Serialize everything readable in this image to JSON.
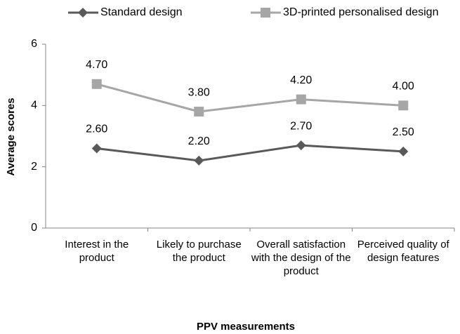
{
  "chart_data": {
    "type": "line",
    "categories": [
      "Interest in the product",
      "Likely to purchase the product",
      "Overall satisfaction with the design of the product",
      "Perceived quality of design features"
    ],
    "series": [
      {
        "name": "Standard design",
        "color": "#595959",
        "marker": "diamond",
        "values": [
          2.6,
          2.2,
          2.7,
          2.5
        ],
        "value_labels": [
          "2.60",
          "2.20",
          "2.70",
          "2.50"
        ]
      },
      {
        "name": "3D-printed personalised design",
        "color": "#a6a6a6",
        "marker": "square",
        "values": [
          4.7,
          3.8,
          4.2,
          4.0
        ],
        "value_labels": [
          "4.70",
          "3.80",
          "4.20",
          "4.00"
        ]
      }
    ],
    "xlabel": "PPV measurements",
    "ylabel": "Average scores",
    "ylim": [
      0,
      6
    ],
    "yticks": [
      0,
      2,
      4,
      6
    ],
    "grid": false,
    "legend": "top"
  }
}
